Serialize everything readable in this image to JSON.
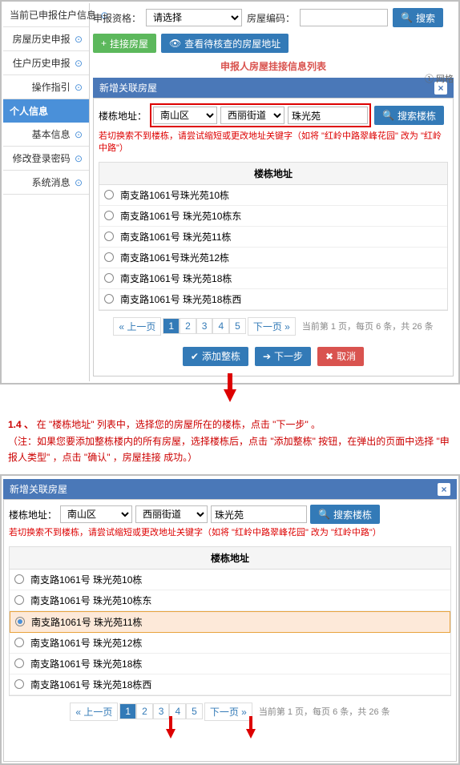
{
  "top": {
    "sidebar": [
      {
        "label": "当前已申报住户信息",
        "arrow": true
      },
      {
        "label": "房屋历史申报",
        "arrow": true
      },
      {
        "label": "住户历史申报",
        "arrow": true
      },
      {
        "label": "操作指引",
        "arrow": true
      }
    ],
    "sidebarHeader": "个人信息",
    "sidebar2": [
      {
        "label": "基本信息",
        "arrow": true
      },
      {
        "label": "修改登录密码",
        "arrow": true
      },
      {
        "label": "系统消息",
        "arrow": true
      }
    ],
    "form": {
      "qualLabel": "申报资格：",
      "qualSel": "请选择",
      "codeLabel": "房屋编码：",
      "codeVal": "",
      "searchBtn": "搜索",
      "btnLink": "挂接房屋",
      "btnCheck": "查看待核查的房屋地址",
      "listTitle": "申报人房屋挂接信息列表",
      "sideLabels": "① 网格"
    },
    "modal": {
      "title": "新增关联房屋",
      "addrLabel": "楼栋地址：",
      "district": "南山区",
      "street": "西丽街道",
      "bld": "珠光苑",
      "searchBtn": "搜索楼栋",
      "warn": "若切换索不到楼栋，请尝试缩短或更改地址关键字（如将 \"红岭中路翠峰花园\" 改为 \"红岭中路\"）",
      "tblHead": "楼栋地址",
      "rows": [
        "南支路1061号珠光苑10栋",
        "南支路1061号 珠光苑10栋东",
        "南支路1061号 珠光苑11栋",
        "南支路1061号珠光苑12栋",
        "南支路1061号 珠光苑18栋",
        "南支路1061号 珠光苑18栋西"
      ],
      "pgPrev": "« 上一页",
      "pgNext": "下一页 »",
      "pgNums": [
        "1",
        "2",
        "3",
        "4",
        "5"
      ],
      "pgInfo": "当前第 1 页，每页 6 条，共 26 条",
      "addAll": "添加整栋",
      "next": "下一步",
      "cancel": "取消"
    }
  },
  "step": {
    "num": "1.4 、",
    "text": "在 \"楼栋地址\" 列表中，选择您的房屋所在的楼栋，点击 \"下一步\" 。",
    "note": "（注：如果您要添加整栋楼内的所有房屋，选择楼栋后，点击 \"添加整栋\" 按钮，在弹出的页面中选择 \"申报人类型\" ，点击 \"确认\" ，房屋挂接 成功。）"
  },
  "bot": {
    "title": "新增关联房屋",
    "addrLabel": "楼栋地址：",
    "district": "南山区",
    "street": "西丽街道",
    "bld": "珠光苑",
    "searchBtn": "搜索楼栋",
    "warn": "若切换索不到楼栋，请尝试缩短或更改地址关键字（如将 \"红岭中路翠峰花园\" 改为 \"红岭中路\"）",
    "tblHead": "楼栋地址",
    "rows": [
      {
        "t": "南支路1061号 珠光苑10栋",
        "sel": false
      },
      {
        "t": "南支路1061号 珠光苑10栋东",
        "sel": false
      },
      {
        "t": "南支路1061号 珠光苑11栋",
        "sel": true
      },
      {
        "t": "南支路1061号 珠光苑12栋",
        "sel": false
      },
      {
        "t": "南支路1061号 珠光苑18栋",
        "sel": false
      },
      {
        "t": "南支路1061号 珠光苑18栋西",
        "sel": false
      }
    ],
    "pgPrev": "« 上一页",
    "pgNext": "下一页 »",
    "pgNums": [
      "1",
      "2",
      "3",
      "4",
      "5"
    ],
    "pgInfo": "当前第 1 页，每页 6 条，共 26 条"
  }
}
